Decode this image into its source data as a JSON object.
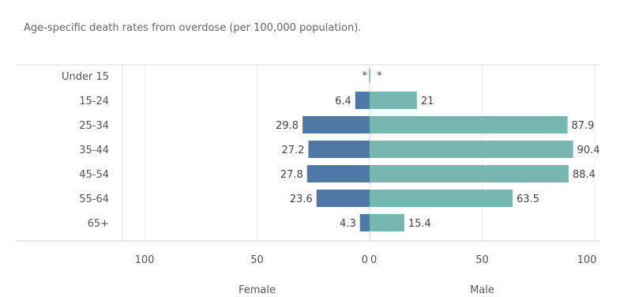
{
  "chart_data": {
    "type": "bar",
    "orientation": "horizontal",
    "title": "Age-specific death rates from overdose (per 100,000 population).",
    "categories": [
      "Under 15",
      "15-24",
      "25-34",
      "35-44",
      "45-54",
      "55-64",
      "65+"
    ],
    "series": [
      {
        "name": "Female",
        "values": [
          null,
          6.4,
          29.8,
          27.2,
          27.8,
          23.6,
          4.3
        ],
        "labels": [
          "*",
          "6.4",
          "29.8",
          "27.2",
          "27.8",
          "23.6",
          "4.3"
        ],
        "color": "#4e79a7"
      },
      {
        "name": "Male",
        "values": [
          null,
          21,
          87.9,
          90.4,
          88.4,
          63.5,
          15.4
        ],
        "labels": [
          "*",
          "21",
          "87.9",
          "90.4",
          "88.4",
          "63.5",
          "15.4"
        ],
        "color": "#76b7b2"
      }
    ],
    "xlim": [
      0,
      100
    ],
    "xticks_female": [
      "100",
      "50",
      "0"
    ],
    "xticks_male": [
      "0",
      "50",
      "100"
    ],
    "xlabel_left": "Female",
    "xlabel_right": "Male",
    "grid": "vertical gridlines"
  }
}
